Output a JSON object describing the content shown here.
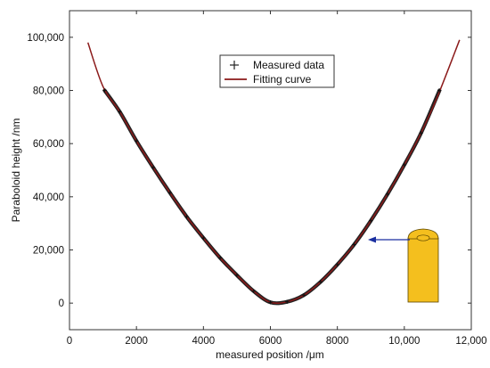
{
  "chart_data": {
    "type": "line",
    "title": "",
    "xlabel": "measured position /μm",
    "ylabel": "Paraboloid height /nm",
    "xlim": [
      0,
      12000
    ],
    "ylim": [
      -10000,
      110000
    ],
    "x_ticks": [
      0,
      2000,
      4000,
      6000,
      8000,
      10000,
      12000
    ],
    "x_tick_labels": [
      "0",
      "2000",
      "4000",
      "6000",
      "8000",
      "10,000",
      "12,000"
    ],
    "y_ticks": [
      0,
      20000,
      40000,
      60000,
      80000,
      100000
    ],
    "y_tick_labels": [
      "0",
      "20,000",
      "40,000",
      "60,000",
      "80,000",
      "100,000"
    ],
    "grid": false,
    "legend_position": "top-center",
    "series": [
      {
        "name": "Measured data",
        "style": "markers",
        "color": "#222222",
        "x": [
          1050,
          1500,
          2000,
          2500,
          3000,
          3500,
          4000,
          4500,
          5000,
          5500,
          6000,
          6500,
          7000,
          7500,
          8000,
          8500,
          9000,
          9500,
          10000,
          10500,
          11050
        ],
        "y": [
          80000,
          72000,
          61000,
          51000,
          41500,
          32500,
          24500,
          17000,
          10500,
          4500,
          300,
          500,
          3000,
          8000,
          14500,
          22000,
          31000,
          41000,
          52000,
          64000,
          80000
        ]
      },
      {
        "name": "Fitting curve",
        "style": "line",
        "color": "#8b1a1a",
        "x": [
          550,
          1000,
          1500,
          2000,
          2500,
          3000,
          3500,
          4000,
          4500,
          5000,
          5500,
          6000,
          6500,
          7000,
          7500,
          8000,
          8500,
          9000,
          9500,
          10000,
          10500,
          11000,
          11650
        ],
        "y": [
          98000,
          81500,
          72000,
          61000,
          51000,
          41500,
          32500,
          24500,
          17000,
          10500,
          4500,
          300,
          500,
          3000,
          8000,
          14500,
          22000,
          31000,
          41000,
          52000,
          64000,
          78000,
          99000
        ]
      }
    ],
    "legend": {
      "entries": [
        "Measured data",
        "Fitting curve"
      ]
    },
    "inset": {
      "description_icon": "paraboloid-lens-part",
      "arrow_color": "#1a2fa0",
      "fill_color": "#f4bf1e",
      "arrow_target": {
        "x": 8950,
        "y": 24200
      }
    }
  }
}
